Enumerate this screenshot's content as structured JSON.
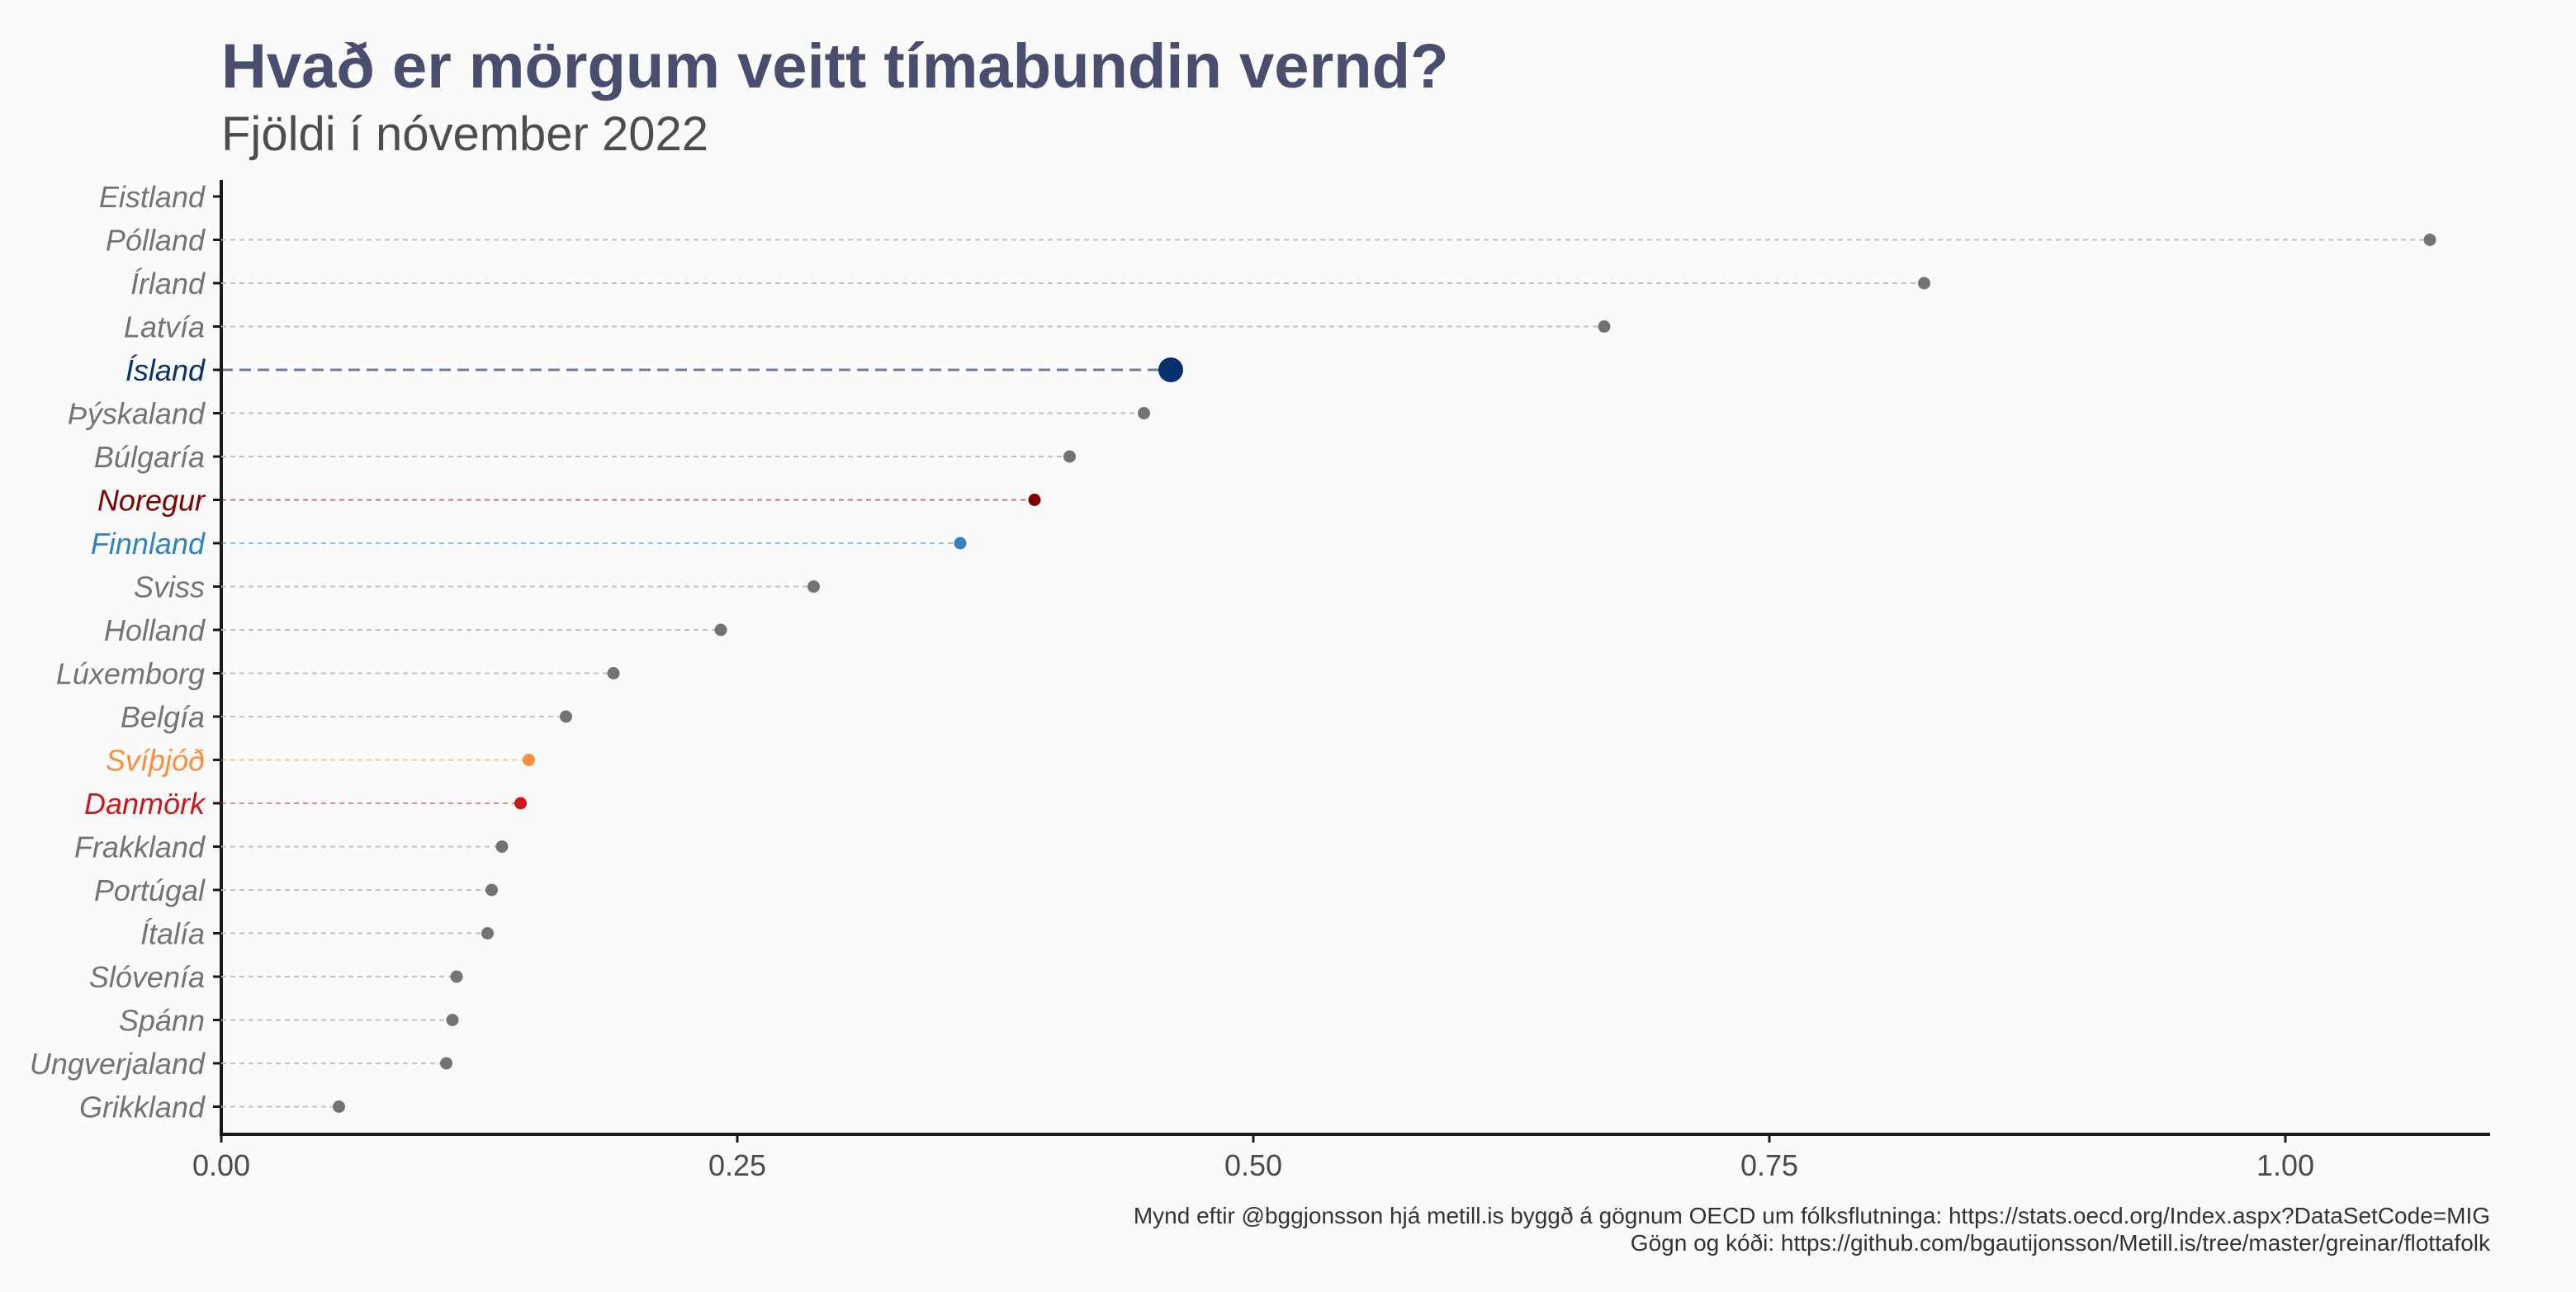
{
  "chart_data": {
    "type": "scatter",
    "title": "Hvað er mörgum veitt tímabundin vernd?",
    "subtitle": "Fjöldi í nóvember 2022",
    "xlim": [
      0,
      1.1
    ],
    "x_ticks": [
      "0.00",
      "0.25",
      "0.50",
      "0.75",
      "1.00"
    ],
    "x_tick_values": [
      0,
      0.25,
      0.5,
      0.75,
      1.0
    ],
    "grid": false,
    "categories": [
      "Eistland",
      "Pólland",
      "Írland",
      "Latvía",
      "Ísland",
      "Þýskaland",
      "Búlgaría",
      "Noregur",
      "Finnland",
      "Sviss",
      "Holland",
      "Lúxemborg",
      "Belgía",
      "Svíþjóð",
      "Danmörk",
      "Frakkland",
      "Portúgal",
      "Ítalía",
      "Slóvenía",
      "Spánn",
      "Ungverjaland",
      "Grikkland"
    ],
    "values": [
      null,
      1.07,
      0.825,
      0.67,
      0.46,
      0.447,
      0.411,
      0.394,
      0.358,
      0.287,
      0.242,
      0.19,
      0.167,
      0.149,
      0.145,
      0.136,
      0.131,
      0.129,
      0.114,
      0.112,
      0.109,
      0.057
    ],
    "colors": {
      "default": "#737373",
      "default_line": "#bdbdbd",
      "Ísland": "#08306b",
      "Noregur": "#7f0000",
      "Finnland": "#3182bd",
      "Svíþjóð": "#fd8d3c",
      "Danmörk": "#cb181d",
      "title": "#4a4e6e",
      "subtitle": "#4d4d4d",
      "label": "#737373"
    },
    "caption": [
      "Mynd eftir @bggjonsson hjá metill.is byggð á gögnum OECD um fólksflutninga: https://stats.oecd.org/Index.aspx?DataSetCode=MIG",
      "Gögn og kóði: https://github.com/bgautijonsson/Metill.is/tree/master/greinar/flottafolk"
    ]
  }
}
